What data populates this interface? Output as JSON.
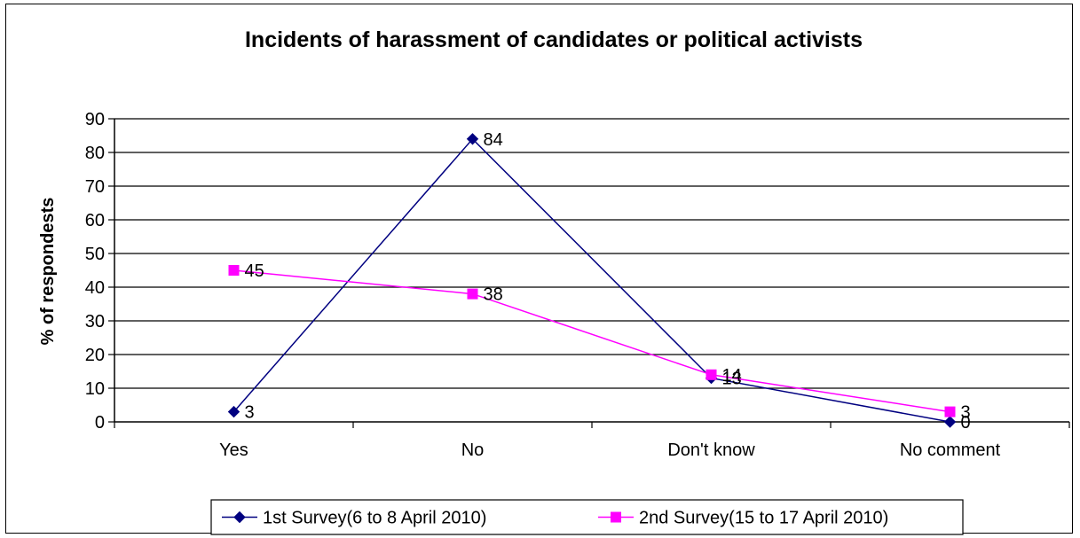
{
  "chart_data": {
    "type": "line",
    "title": "Incidents of harassment of candidates or political activists",
    "xlabel": "",
    "ylabel": "% of respondests",
    "categories": [
      "Yes",
      "No",
      "Don't know",
      "No comment"
    ],
    "ylim": [
      0,
      90
    ],
    "yticks": [
      0,
      10,
      20,
      30,
      40,
      50,
      60,
      70,
      80,
      90
    ],
    "grid": true,
    "legend_position": "bottom",
    "series": [
      {
        "name": "1st Survey(6 to 8 April 2010)",
        "values": [
          3,
          84,
          13,
          0
        ],
        "labels": [
          "3",
          "84",
          "13",
          "0"
        ],
        "color": "#000080",
        "marker": "diamond"
      },
      {
        "name": "2nd Survey(15 to 17 April 2010)",
        "values": [
          45,
          38,
          14,
          3
        ],
        "labels": [
          "45",
          "38",
          "14",
          "3"
        ],
        "color": "#FF00FF",
        "marker": "square"
      }
    ]
  }
}
